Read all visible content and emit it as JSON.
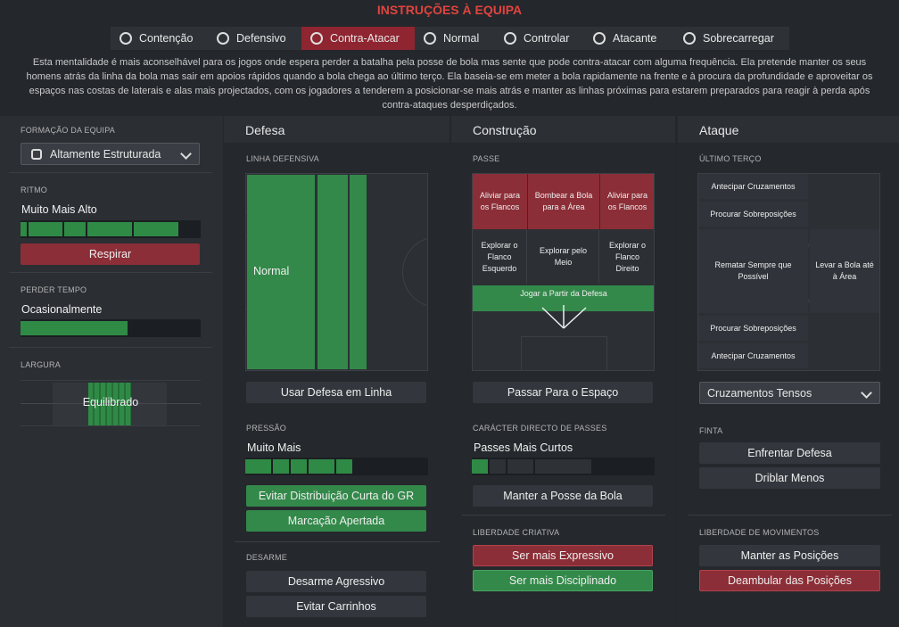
{
  "header": {
    "title": "INSTRUÇÕES À EQUIPA",
    "tabs": [
      "Contenção",
      "Defensivo",
      "Contra-Atacar",
      "Normal",
      "Controlar",
      "Atacante",
      "Sobrecarregar"
    ],
    "description": "Esta mentalidade é mais aconselhável para os jogos onde espera perder a batalha pela posse de bola mas sente que pode contra-atacar com alguma frequência. Ela pretende manter os seus homens atrás da linha da bola mas sair em apoios rápidos quando a bola chega ao último terço. Ela baseia-se em meter a bola rapidamente na frente e à procura da profundidade e aproveitar os espaços nas costas de laterais e alas mais projectados, com os jogadores a tenderem a posicionar-se mais atrás e manter as linhas próximas para estarem preparados para reagir à perda após contra-ataques desperdiçados."
  },
  "sidebar": {
    "formation_label": "FORMAÇÃO DA EQUIPA",
    "formation": "Altamente Estruturada",
    "tempo_label": "RITMO",
    "tempo": "Muito Mais Alto",
    "tempo_button": "Respirar",
    "time_wasting_label": "PERDER TEMPO",
    "time_wasting": "Ocasionalmente",
    "width_label": "LARGURA",
    "width": "Equilibrado"
  },
  "defence": {
    "title": "Defesa",
    "line_label": "LINHA DEFENSIVA",
    "line": "Normal",
    "line_button": "Usar Defesa em Linha",
    "press_label": "PRESSÃO",
    "press": "Muito Mais",
    "press_buttons": [
      "Evitar Distribuição Curta do GR",
      "Marcação Apertada"
    ],
    "tackle_label": "DESARME",
    "tackle_buttons": [
      "Desarme Agressivo",
      "Evitar Carrinhos"
    ]
  },
  "buildup": {
    "title": "Construção",
    "passing_label": "PASSE",
    "passing_cells": [
      "Aliviar para os Flancos",
      "Bombear a Bola para a Área",
      "Aliviar para os Flancos",
      "Explorar o Flanco Esquerdo",
      "Explorar pelo Meio",
      "Explorar o Flanco Direito",
      "Jogar a Partir da Defesa"
    ],
    "passing_button": "Passar Para o Espaço",
    "directness_label": "CARÁCTER DIRECTO DE PASSES",
    "directness": "Passes Mais Curtos",
    "directness_button": "Manter a Posse da Bola",
    "creative_label": "LIBERDADE CRIATIVA",
    "creative_buttons": [
      "Ser mais Expressivo",
      "Ser mais Disciplinado"
    ]
  },
  "attack": {
    "title": "Ataque",
    "final_third_label": "ÚLTIMO TERÇO",
    "final_third_cells": [
      "Antecipar Cruzamentos",
      "Procurar Sobreposições",
      "Rematar Sempre que Possível",
      "Levar a Bola até à Área",
      "Procurar Sobreposições",
      "Antecipar Cruzamentos"
    ],
    "crossing": "Cruzamentos Tensos",
    "dribble_label": "FINTA",
    "dribble_buttons": [
      "Enfrentar Defesa",
      "Driblar Menos"
    ],
    "movement_label": "LIBERDADE DE MOVIMENTOS",
    "movement_buttons": [
      "Manter as Posições",
      "Deambular das Posições"
    ]
  }
}
